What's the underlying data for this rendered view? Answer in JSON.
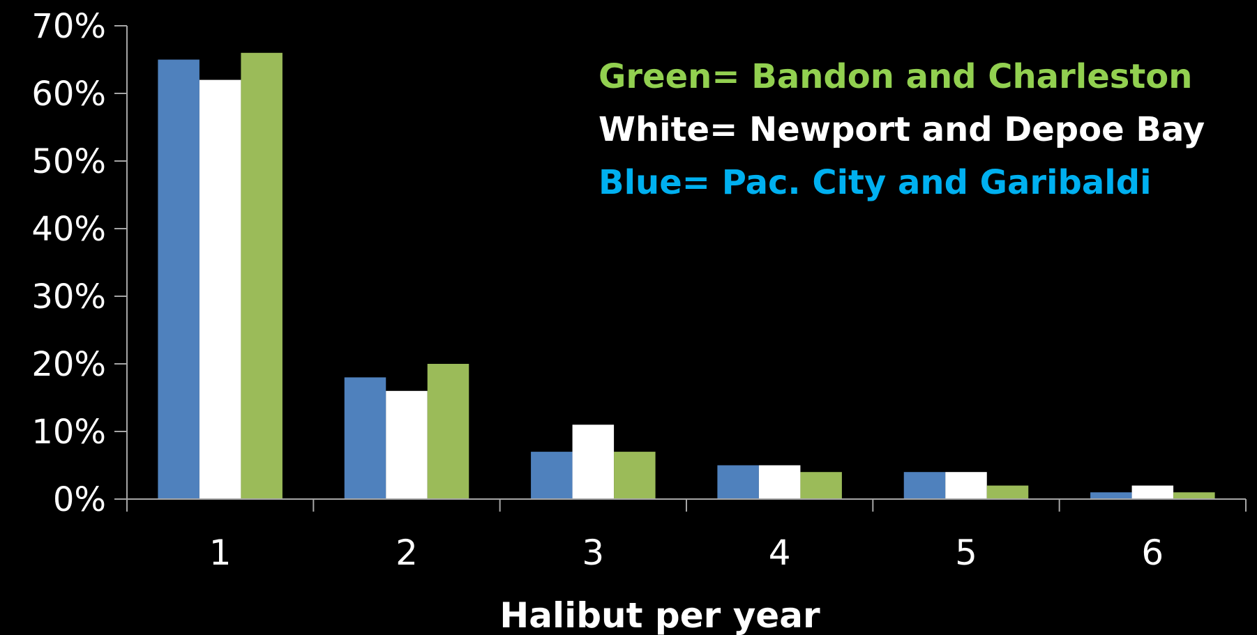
{
  "chart_data": {
    "type": "bar",
    "title": "",
    "xlabel": "Halibut per year",
    "ylabel": "",
    "categories": [
      "1",
      "2",
      "3",
      "4",
      "5",
      "6"
    ],
    "ylim": [
      0,
      70
    ],
    "yticks": [
      "0%",
      "10%",
      "20%",
      "30%",
      "40%",
      "50%",
      "60%",
      "70%"
    ],
    "grid": false,
    "series": [
      {
        "values": [
          65,
          18,
          7,
          5,
          4,
          1
        ],
        "color": "#4f81bd"
      },
      {
        "values": [
          62,
          16,
          11,
          5,
          4,
          2
        ],
        "color": "#ffffff"
      },
      {
        "values": [
          66,
          20,
          7,
          4,
          2,
          1
        ],
        "color": "#9bbb59"
      }
    ],
    "annotations": [
      {
        "text": "Green= Bandon and Charleston",
        "color": "#92d050"
      },
      {
        "text": "White= Newport and Depoe Bay",
        "color": "#ffffff"
      },
      {
        "text": "Blue= Pac. City and Garibaldi",
        "color": "#00b0f0"
      }
    ],
    "axis_color": "#a6a6a6",
    "text_color": "#ffffff"
  }
}
